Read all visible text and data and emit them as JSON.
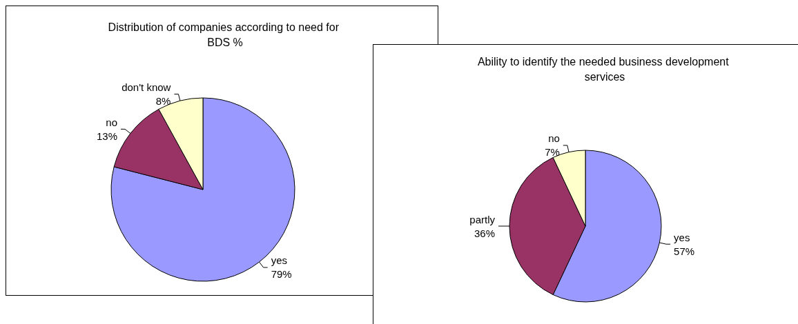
{
  "chart_data": [
    {
      "type": "pie",
      "title": "Distribution of companies according to need for BDS %",
      "categories": [
        "yes",
        "no",
        "don't know"
      ],
      "values": [
        79,
        13,
        8
      ],
      "value_labels": [
        "79%",
        "13%",
        "8%"
      ],
      "colors": [
        "#9999ff",
        "#993366",
        "#ffffcc"
      ],
      "legend": false
    },
    {
      "type": "pie",
      "title": "Ability to identify the needed business development services",
      "categories": [
        "yes",
        "partly",
        "no"
      ],
      "values": [
        57,
        36,
        7
      ],
      "value_labels": [
        "57%",
        "36%",
        "7%"
      ],
      "colors": [
        "#9999ff",
        "#993366",
        "#ffffcc"
      ],
      "legend": false
    }
  ]
}
